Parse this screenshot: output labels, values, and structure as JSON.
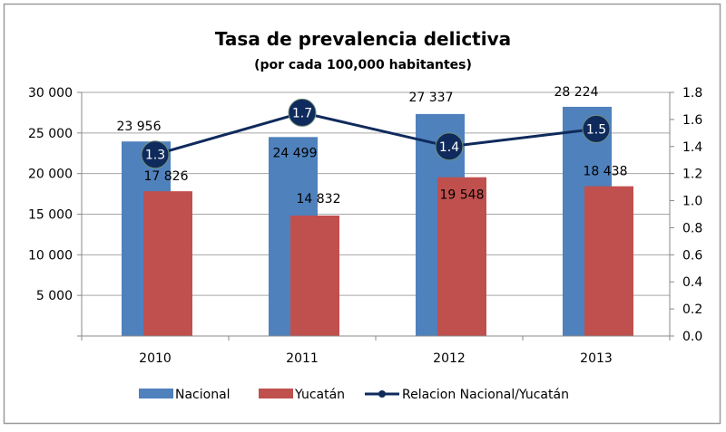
{
  "chart_data": {
    "type": "bar",
    "title": "Tasa de prevalencia delictiva",
    "subtitle": "(por cada 100,000  habitantes)",
    "categories": [
      "2010",
      "2011",
      "2012",
      "2013"
    ],
    "series": [
      {
        "name": "Nacional",
        "type": "bar",
        "axis": "left",
        "color": "#4F81BD",
        "values": [
          23956,
          24499,
          27337,
          28224
        ],
        "labels": [
          "23 956",
          "24 499",
          "27 337",
          "28 224"
        ]
      },
      {
        "name": "Yucatán",
        "type": "bar",
        "axis": "left",
        "color": "#C0504D",
        "values": [
          17826,
          14832,
          19548,
          18438
        ],
        "labels": [
          "17 826",
          "14 832",
          "19 548",
          "18 438"
        ]
      },
      {
        "name": "Relacion Nacional/Yucatán",
        "type": "line",
        "axis": "right",
        "color": "#0F2A5C",
        "values": [
          1.34,
          1.65,
          1.4,
          1.53
        ],
        "labels": [
          "1.3",
          "1.7",
          "1.4",
          "1.5"
        ]
      }
    ],
    "y_left": {
      "range": [
        0,
        30000
      ],
      "ticks": [
        "",
        "5 000",
        "10 000",
        "15 000",
        "20 000",
        "25 000",
        "30 000"
      ]
    },
    "y_right": {
      "range": [
        0,
        1.8
      ],
      "ticks": [
        "0.0",
        "0.2",
        "0.4",
        "0.6",
        "0.8",
        "1.0",
        "1.2",
        "1.4",
        "1.6",
        "1.8"
      ]
    },
    "grid": true,
    "legend": "bottom"
  }
}
